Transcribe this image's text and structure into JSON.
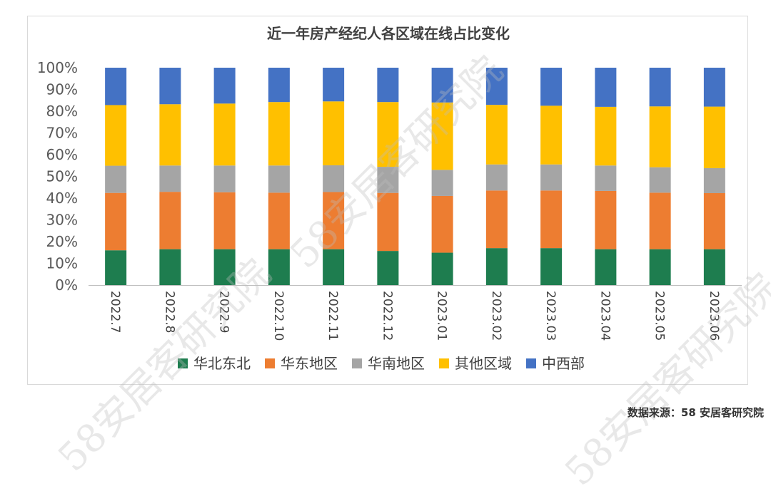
{
  "chart_data": {
    "type": "bar",
    "stacked": true,
    "title": "近一年房产经纪人各区域在线占比变化",
    "xlabel": "",
    "ylabel": "",
    "categories": [
      "2022.7",
      "2022.8",
      "2022.9",
      "2022.10",
      "2022.11",
      "2022.12",
      "2023.01",
      "2023.02",
      "2023.03",
      "2023.04",
      "2023.05",
      "2023.06"
    ],
    "ylim": [
      0,
      100
    ],
    "yticks": [
      "0%",
      "10%",
      "20%",
      "30%",
      "40%",
      "50%",
      "60%",
      "70%",
      "80%",
      "90%",
      "100%"
    ],
    "legend_position": "bottom",
    "grid": false,
    "series": [
      {
        "name": "华北东北",
        "color": "#1e7d4f",
        "values": [
          16.0,
          16.5,
          16.5,
          16.5,
          16.5,
          15.7,
          14.9,
          17.0,
          17.0,
          16.5,
          16.5,
          16.5
        ]
      },
      {
        "name": "华东地区",
        "color": "#ed7d31",
        "values": [
          26.4,
          26.4,
          26.2,
          26.0,
          26.3,
          26.7,
          26.1,
          26.5,
          26.5,
          26.8,
          26.0,
          25.8
        ]
      },
      {
        "name": "华南地区",
        "color": "#a5a5a5",
        "values": [
          12.5,
          12.1,
          12.3,
          12.5,
          12.3,
          12.0,
          12.0,
          12.0,
          12.0,
          11.7,
          11.7,
          11.5
        ]
      },
      {
        "name": "其他区域",
        "color": "#ffc000",
        "values": [
          27.9,
          28.2,
          28.5,
          29.2,
          29.4,
          29.8,
          31.0,
          27.4,
          27.0,
          27.0,
          28.0,
          28.3
        ]
      },
      {
        "name": "中西部",
        "color": "#4472c4",
        "values": [
          17.2,
          16.8,
          16.5,
          15.8,
          15.5,
          15.8,
          16.0,
          17.1,
          17.5,
          18.0,
          17.8,
          17.9
        ]
      }
    ]
  },
  "watermark_text": "58安居客研究院",
  "source_note": "数据来源：58 安居客研究院"
}
